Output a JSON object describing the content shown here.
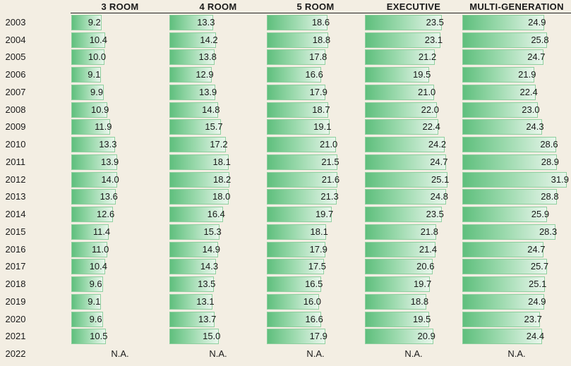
{
  "chart_data": {
    "type": "table",
    "columns": [
      "3 ROOM",
      "4 ROOM",
      "5 ROOM",
      "EXECUTIVE",
      "MULTI-GENERATION"
    ],
    "rows": [
      "2003",
      "2004",
      "2005",
      "2006",
      "2007",
      "2008",
      "2009",
      "2010",
      "2011",
      "2012",
      "2013",
      "2014",
      "2015",
      "2016",
      "2017",
      "2018",
      "2019",
      "2020",
      "2021",
      "2022"
    ],
    "series": [
      {
        "values": [
          9.2,
          10.4,
          10.0,
          9.1,
          9.9,
          10.9,
          11.9,
          13.3,
          13.9,
          14.0,
          13.6,
          12.6,
          11.4,
          11.0,
          10.4,
          9.6,
          9.1,
          9.6,
          10.5,
          null
        ]
      },
      {
        "values": [
          13.3,
          14.2,
          13.8,
          12.9,
          13.9,
          14.8,
          15.7,
          17.2,
          18.1,
          18.2,
          18.0,
          16.4,
          15.3,
          14.9,
          14.3,
          13.5,
          13.1,
          13.7,
          15.0,
          null
        ]
      },
      {
        "values": [
          18.6,
          18.8,
          17.8,
          16.6,
          17.9,
          18.7,
          19.1,
          21.0,
          21.5,
          21.6,
          21.3,
          19.7,
          18.1,
          17.9,
          17.5,
          16.5,
          16.0,
          16.6,
          17.9,
          null
        ]
      },
      {
        "values": [
          23.5,
          23.1,
          21.2,
          19.5,
          21.0,
          22.0,
          22.4,
          24.2,
          24.7,
          25.1,
          24.8,
          23.5,
          21.8,
          21.4,
          20.6,
          19.7,
          18.8,
          19.5,
          20.9,
          null
        ]
      },
      {
        "values": [
          24.9,
          25.8,
          24.7,
          21.9,
          22.4,
          23.0,
          24.3,
          28.6,
          28.9,
          31.9,
          28.8,
          25.9,
          28.3,
          24.7,
          25.7,
          25.1,
          24.9,
          23.7,
          24.4,
          null
        ]
      }
    ],
    "missing_label": "N.A.",
    "decimals": 1
  },
  "colors": {
    "background": "#f3eee3",
    "bar_dark": "#5fbf7d",
    "bar_light": "#e9f6ec",
    "bar_border": "#8fcf9f"
  }
}
